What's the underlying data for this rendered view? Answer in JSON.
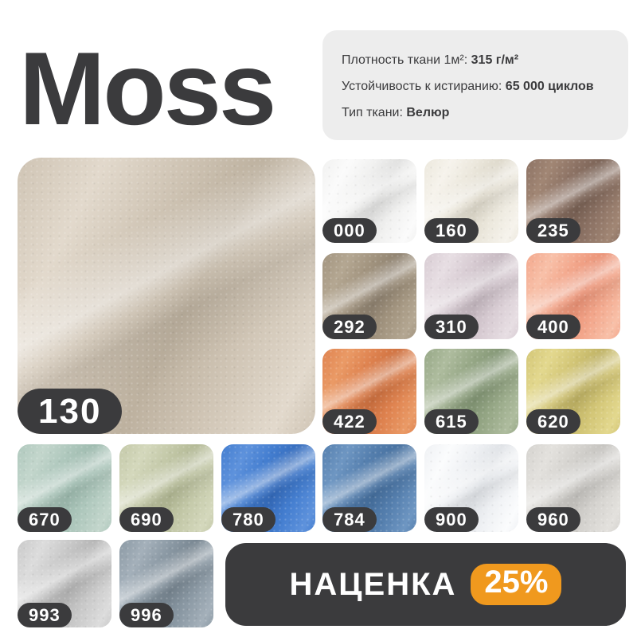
{
  "title": "Moss",
  "info_card": {
    "rows": [
      {
        "label": "Плотность ткани 1м²:",
        "value": "315 г/м²"
      },
      {
        "label": "Устойчивость к истиранию:",
        "value": "65 000 циклов"
      },
      {
        "label": "Тип ткани:",
        "value": "Велюр"
      }
    ]
  },
  "featured": {
    "code": "130",
    "light": "#e2d9cc",
    "mid": "#cfc4b4",
    "dark": "#bdb19f"
  },
  "swatches": [
    {
      "code": "000",
      "light": "#fbfbfb",
      "mid": "#f1f1f0",
      "dark": "#e0e0df"
    },
    {
      "code": "160",
      "light": "#f6f3ec",
      "mid": "#ece8dd",
      "dark": "#ddd8ca"
    },
    {
      "code": "235",
      "light": "#a18674",
      "mid": "#8d7365",
      "dark": "#7a6255"
    },
    {
      "code": "292",
      "light": "#b4a792",
      "mid": "#a2947f",
      "dark": "#8f8270"
    },
    {
      "code": "310",
      "light": "#e7dee3",
      "mid": "#d8ccd3",
      "dark": "#c5b8c0"
    },
    {
      "code": "400",
      "light": "#f8c0a8",
      "mid": "#f3a78c",
      "dark": "#ea9276"
    },
    {
      "code": "422",
      "light": "#ea9a66",
      "mid": "#df8350",
      "dark": "#ce7140"
    },
    {
      "code": "615",
      "light": "#aebc9e",
      "mid": "#97a887",
      "dark": "#839675"
    },
    {
      "code": "620",
      "light": "#e3d88e",
      "mid": "#d3c677",
      "dark": "#bfb264"
    },
    {
      "code": "670",
      "light": "#c3d6cc",
      "mid": "#afc8bd",
      "dark": "#9dbaae"
    },
    {
      "code": "690",
      "light": "#d4d8bc",
      "mid": "#c4c9a9",
      "dark": "#b2b894"
    },
    {
      "code": "780",
      "light": "#5e92dc",
      "mid": "#447ed0",
      "dark": "#356cbd"
    },
    {
      "code": "784",
      "light": "#6e96c2",
      "mid": "#557fae",
      "dark": "#46709f"
    },
    {
      "code": "900",
      "light": "#fbfcfd",
      "mid": "#eff1f4",
      "dark": "#dfe2e6"
    },
    {
      "code": "960",
      "light": "#e3e1dd",
      "mid": "#d5d3cf",
      "dark": "#c5c3bf"
    },
    {
      "code": "993",
      "light": "#dcdcdc",
      "mid": "#c9c9c9",
      "dark": "#b5b5b5"
    },
    {
      "code": "996",
      "light": "#a4b0ba",
      "mid": "#8b99a4",
      "dark": "#788691"
    }
  ],
  "promo": {
    "label": "НАЦЕНКА",
    "value": "25%"
  },
  "colors": {
    "dark": "#3B3B3D",
    "card_bg": "#EDEDED",
    "accent": "#F0991E"
  }
}
